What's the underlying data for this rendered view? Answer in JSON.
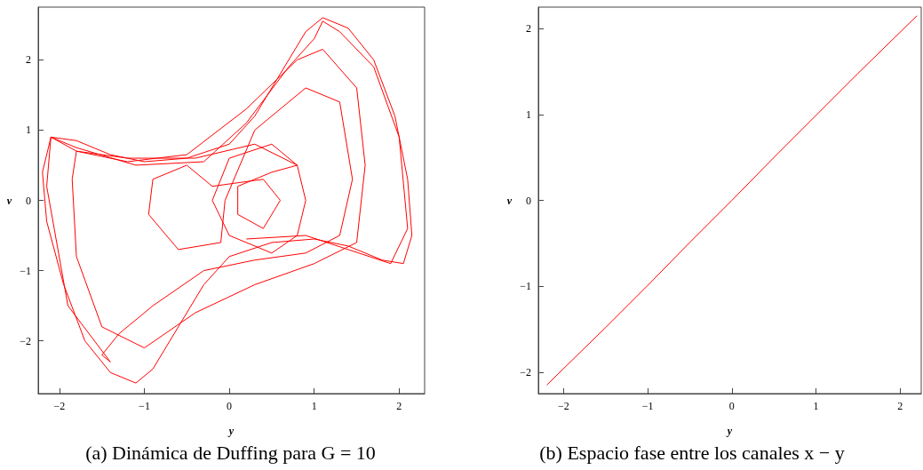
{
  "chart_data": [
    {
      "type": "line",
      "title": "(a) Dinámica de Duffing para G = 10",
      "xlabel": "y",
      "ylabel": "v",
      "xlim": [
        -2.25,
        2.3
      ],
      "ylim": [
        -2.75,
        2.75
      ],
      "xticks": [
        -2,
        -1,
        0,
        1,
        2
      ],
      "yticks": [
        -2,
        -1,
        0,
        1,
        2
      ],
      "grid": false,
      "marker": "none",
      "line_style": "solid",
      "series": [
        {
          "color": "#ff0000",
          "x": [
            -2.1,
            -1.8,
            -1.4,
            -1,
            -0.5,
            0,
            0.3,
            0.6,
            0.9,
            1.1,
            1.4,
            1.7,
            1.95,
            2.1,
            2.15,
            2.05,
            1.8,
            1.4,
            1,
            0.5,
            0,
            -0.3,
            -0.6,
            -0.9,
            -1.1,
            -1.4,
            -1.7,
            -1.95,
            -2.15,
            -2.2,
            -2.1,
            -1.8,
            -1.2,
            -0.5,
            0.2,
            0.8,
            1.1,
            1.5,
            1.6,
            1.5,
            1,
            0.3,
            -0.4,
            -1,
            -1.5,
            -1.8,
            -1.85,
            -1.8,
            -1.2,
            -0.4,
            0.3,
            0.8,
            0.5,
            0,
            -0.2,
            0,
            0.5,
            0.8,
            0.9,
            0.8,
            0.5,
            0.1,
            0.1,
            0.4,
            0.6,
            0.4,
            -0.2,
            -0.5,
            -0.9,
            -0.95,
            -0.6,
            -0.1,
            -0.05,
            0.3,
            0.9,
            1.3,
            1.45,
            1.3,
            0.9,
            0.3,
            -0.3,
            -0.9,
            -1.3,
            -1.5,
            -1.4,
            -1.9,
            -2.15,
            -2.1,
            -1.8,
            -1.1,
            -0.3,
            0.2,
            0.7,
            1.0,
            1.1,
            1.3,
            1.7,
            2.0,
            2.1,
            1.9,
            1.4,
            0.9,
            0.2
          ],
          "values": [
            0.9,
            0.85,
            0.65,
            0.55,
            0.6,
            0.8,
            1.2,
            1.8,
            2.4,
            2.6,
            2.45,
            2.0,
            1.2,
            0.3,
            -0.5,
            -0.9,
            -0.85,
            -0.65,
            -0.55,
            -0.6,
            -0.8,
            -1.2,
            -1.8,
            -2.4,
            -2.6,
            -2.45,
            -2.0,
            -1.2,
            -0.3,
            0.4,
            0.9,
            0.7,
            0.55,
            0.65,
            1.3,
            2.0,
            2.15,
            1.6,
            0.5,
            -0.6,
            -0.9,
            -1.2,
            -1.6,
            -2.1,
            -1.8,
            -0.8,
            0.3,
            0.7,
            0.6,
            0.6,
            0.8,
            0.5,
            0.8,
            0.6,
            0,
            -0.5,
            -0.75,
            -0.5,
            0,
            0.5,
            0.4,
            0.2,
            -0.2,
            -0.4,
            0,
            0.3,
            0.2,
            0.5,
            0.3,
            -0.2,
            -0.7,
            -0.6,
            0,
            1.0,
            1.6,
            1.4,
            0.3,
            -0.5,
            -0.75,
            -0.85,
            -1.0,
            -1.5,
            -1.9,
            -2.2,
            -2.3,
            -1.5,
            0.2,
            0.9,
            0.75,
            0.5,
            0.55,
            1.1,
            1.9,
            2.3,
            2.55,
            2.4,
            1.9,
            0.9,
            -0.4,
            -0.9,
            -0.7,
            -0.5,
            -0.55
          ]
        }
      ]
    },
    {
      "type": "line",
      "title": "(b) Espacio fase entre los canales x − y",
      "xlabel": "y",
      "ylabel": "v",
      "xlim": [
        -2.3,
        2.25
      ],
      "ylim": [
        -2.25,
        2.25
      ],
      "xticks": [
        -2,
        -1,
        0,
        1,
        2
      ],
      "yticks": [
        -2,
        -1,
        0,
        1,
        2
      ],
      "grid": false,
      "marker": "none",
      "line_style": "solid",
      "series": [
        {
          "color": "#ff0000",
          "x": [
            -2.2,
            -1.5,
            -1,
            -0.5,
            0,
            0.5,
            1,
            1.5,
            2.2
          ],
          "values": [
            -2.15,
            -1.48,
            -0.99,
            -0.49,
            0,
            0.5,
            0.99,
            1.48,
            2.15
          ]
        }
      ]
    }
  ]
}
